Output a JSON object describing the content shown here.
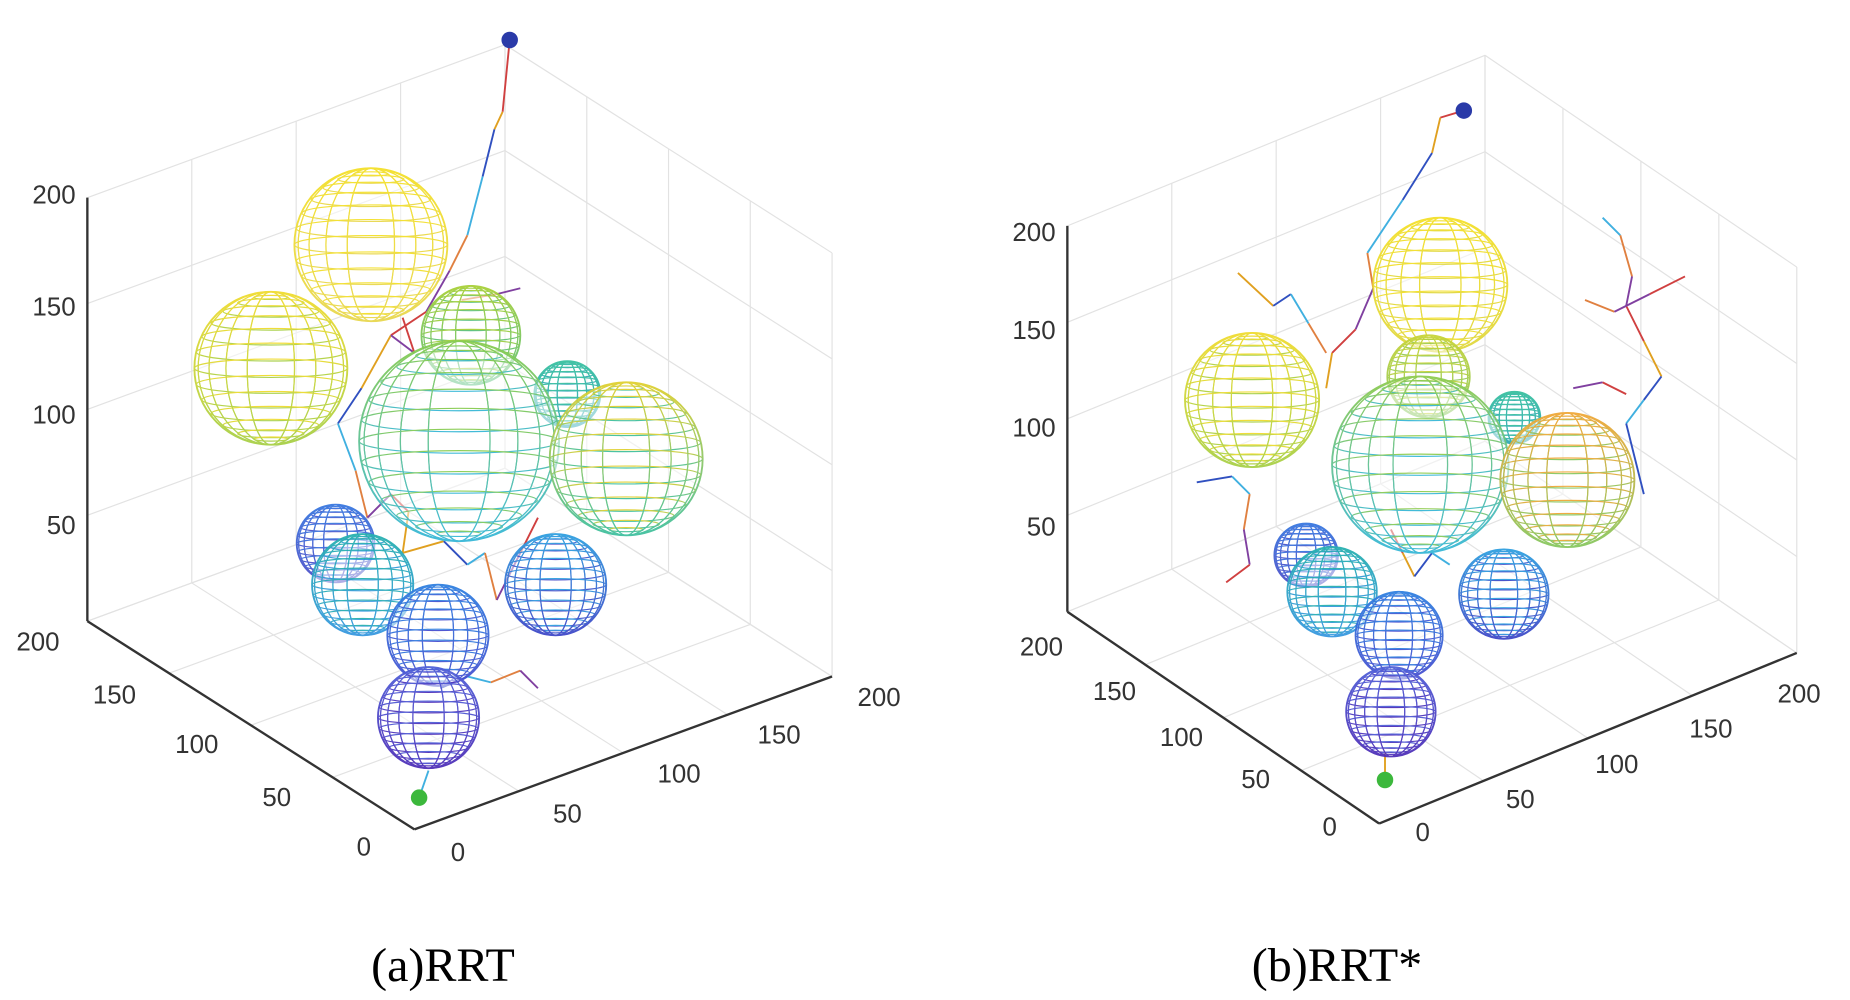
{
  "chart_data": [
    {
      "type": "scatter3d",
      "title": "(a)RRT",
      "x_ticks": [
        "0",
        "50",
        "100",
        "150",
        "200"
      ],
      "y_ticks": [
        "0",
        "50",
        "100",
        "150",
        "200"
      ],
      "z_ticks": [
        "50",
        "100",
        "150",
        "200"
      ],
      "xlim": [
        0,
        200
      ],
      "ylim": [
        0,
        200
      ],
      "zlim": [
        0,
        200
      ],
      "grid": true,
      "obstacles": "spherical wireframe obstacles, colored by height (parula colormap)",
      "markers": {
        "start_color": "#3cb83c",
        "goal_color": "#2a3aa8"
      },
      "tree_color": "multicolor"
    },
    {
      "type": "scatter3d",
      "title": "(b)RRT*",
      "x_ticks": [
        "0",
        "50",
        "100",
        "150",
        "200"
      ],
      "y_ticks": [
        "0",
        "50",
        "100",
        "150",
        "200"
      ],
      "z_ticks": [
        "50",
        "100",
        "150",
        "200"
      ],
      "xlim": [
        0,
        200
      ],
      "ylim": [
        0,
        200
      ],
      "zlim": [
        0,
        200
      ],
      "grid": true,
      "obstacles": "spherical wireframe obstacles, colored by height (parula colormap)",
      "markers": {
        "start_color": "#3cb83c",
        "goal_color": "#2a3aa8"
      },
      "tree_color": "multicolor"
    }
  ]
}
